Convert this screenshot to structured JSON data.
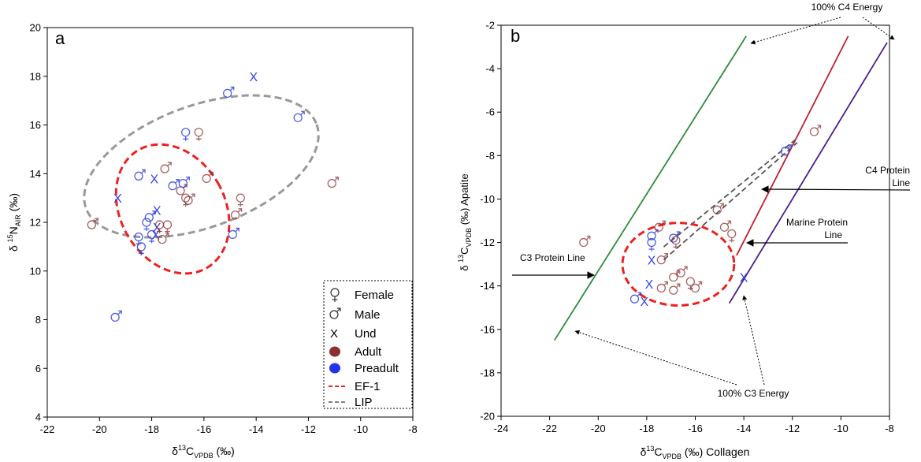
{
  "colors": {
    "adult": "#8B2E2E",
    "preadult": "#3344DD",
    "ef1": "#EE2020",
    "lip": "#999999",
    "c3line": "#2E8B3A",
    "marineline": "#C01E2E",
    "c4line": "#4B1F8C"
  },
  "chart_data": [
    {
      "type": "scatter",
      "panel_label": "a",
      "xlabel": {
        "main": "δ",
        "sup": "13",
        "sub": "C",
        "subscript": "VPDB",
        "unit": " (‰)"
      },
      "ylabel": {
        "main": "δ ",
        "sup": "15",
        "sub": "N",
        "subscript": "AIR",
        "unit": " (‰)"
      },
      "xlim": [
        -22,
        -8
      ],
      "ylim": [
        4,
        20
      ],
      "xticks": [
        -22,
        -20,
        -18,
        -16,
        -14,
        -12,
        -10,
        -8
      ],
      "yticks": [
        4,
        6,
        8,
        10,
        12,
        14,
        16,
        18,
        20
      ],
      "legend": {
        "placement": "bottom-right",
        "entries": [
          {
            "label": "Female",
            "marker": "female"
          },
          {
            "label": "Male",
            "marker": "male"
          },
          {
            "label": "Und",
            "marker": "und"
          },
          {
            "label": "Adult",
            "marker": "dot-adult"
          },
          {
            "label": "Preadult",
            "marker": "dot-preadult"
          },
          {
            "label": "EF-1",
            "marker": "dash-red"
          },
          {
            "label": "LIP",
            "marker": "dash-grey"
          }
        ]
      },
      "ellipses": [
        {
          "name": "LIP",
          "cx": -16.1,
          "cy": 14.3,
          "rx": 4.7,
          "ry": 2.5,
          "angle_deg": 20,
          "style": "lip"
        },
        {
          "name": "EF-1",
          "cx": -17.2,
          "cy": 12.55,
          "rx": 2.0,
          "ry": 2.8,
          "angle_deg": 30,
          "style": "ef1"
        }
      ],
      "points": [
        {
          "x": -20.3,
          "y": 11.9,
          "sex": "male",
          "age": "adult"
        },
        {
          "x": -19.3,
          "y": 13.0,
          "sex": "und",
          "age": "preadult"
        },
        {
          "x": -19.4,
          "y": 8.1,
          "sex": "male",
          "age": "preadult"
        },
        {
          "x": -18.5,
          "y": 13.9,
          "sex": "male",
          "age": "preadult"
        },
        {
          "x": -18.5,
          "y": 11.4,
          "sex": "female",
          "age": "preadult"
        },
        {
          "x": -18.4,
          "y": 11.0,
          "sex": "female",
          "age": "preadult"
        },
        {
          "x": -18.2,
          "y": 12.0,
          "sex": "female",
          "age": "preadult"
        },
        {
          "x": -18.1,
          "y": 12.2,
          "sex": "male",
          "age": "preadult"
        },
        {
          "x": -18.0,
          "y": 11.5,
          "sex": "female",
          "age": "preadult"
        },
        {
          "x": -17.9,
          "y": 13.8,
          "sex": "und",
          "age": "preadult"
        },
        {
          "x": -17.8,
          "y": 12.5,
          "sex": "und",
          "age": "preadult"
        },
        {
          "x": -17.8,
          "y": 11.8,
          "sex": "und",
          "age": "preadult"
        },
        {
          "x": -17.85,
          "y": 11.5,
          "sex": "und",
          "age": "preadult"
        },
        {
          "x": -17.7,
          "y": 11.9,
          "sex": "female",
          "age": "adult"
        },
        {
          "x": -17.6,
          "y": 11.3,
          "sex": "male",
          "age": "adult"
        },
        {
          "x": -17.5,
          "y": 14.2,
          "sex": "male",
          "age": "adult"
        },
        {
          "x": -17.4,
          "y": 11.9,
          "sex": "female",
          "age": "adult"
        },
        {
          "x": -17.2,
          "y": 13.5,
          "sex": "male",
          "age": "preadult"
        },
        {
          "x": -16.9,
          "y": 13.3,
          "sex": "male",
          "age": "adult"
        },
        {
          "x": -16.8,
          "y": 13.6,
          "sex": "male",
          "age": "preadult"
        },
        {
          "x": -16.7,
          "y": 13.0,
          "sex": "female",
          "age": "adult"
        },
        {
          "x": -16.6,
          "y": 12.9,
          "sex": "male",
          "age": "adult"
        },
        {
          "x": -16.7,
          "y": 15.7,
          "sex": "female",
          "age": "preadult"
        },
        {
          "x": -16.2,
          "y": 15.7,
          "sex": "female",
          "age": "adult"
        },
        {
          "x": -15.9,
          "y": 13.8,
          "sex": "male",
          "age": "adult"
        },
        {
          "x": -15.1,
          "y": 17.3,
          "sex": "male",
          "age": "preadult"
        },
        {
          "x": -14.9,
          "y": 11.5,
          "sex": "male",
          "age": "preadult"
        },
        {
          "x": -14.8,
          "y": 12.3,
          "sex": "male",
          "age": "adult"
        },
        {
          "x": -14.6,
          "y": 13.0,
          "sex": "female",
          "age": "adult"
        },
        {
          "x": -14.1,
          "y": 18.0,
          "sex": "und",
          "age": "preadult"
        },
        {
          "x": -12.4,
          "y": 16.3,
          "sex": "male",
          "age": "preadult"
        },
        {
          "x": -11.1,
          "y": 13.6,
          "sex": "male",
          "age": "adult"
        }
      ]
    },
    {
      "type": "scatter",
      "panel_label": "b",
      "xlabel": {
        "main": "δ",
        "sup": "13",
        "sub": "C",
        "subscript": "VPDB",
        "unit": " (‰) Collagen"
      },
      "ylabel": {
        "main": "δ ",
        "sup": "13",
        "sub": "C",
        "subscript": "VPDB",
        "unit": " (‰) Apatite"
      },
      "xlim": [
        -24,
        -8
      ],
      "ylim": [
        -20,
        -2
      ],
      "xticks": [
        -24,
        -22,
        -20,
        -18,
        -16,
        -14,
        -12,
        -10,
        -8
      ],
      "yticks": [
        -20,
        -18,
        -16,
        -14,
        -12,
        -10,
        -8,
        -6,
        -4,
        -2
      ],
      "lines": [
        {
          "name": "C3 Protein Line",
          "x1": -21.8,
          "y1": -16.5,
          "x2": -13.9,
          "y2": -2.5,
          "style": "c3line"
        },
        {
          "name": "Marine Protein Line",
          "x1": -14.3,
          "y1": -12.6,
          "x2": -9.7,
          "y2": -2.5,
          "style": "marineline"
        },
        {
          "name": "C4 Protein Line",
          "x1": -14.6,
          "y1": -14.8,
          "x2": -8.1,
          "y2": -2.8,
          "style": "c4line"
        }
      ],
      "lip_lines": [
        {
          "x1": -17.3,
          "y1": -12.8,
          "x2": -11.8,
          "y2": -7.4
        },
        {
          "x1": -17.3,
          "y1": -12.2,
          "x2": -11.8,
          "y2": -7.2
        }
      ],
      "ellipses": [
        {
          "name": "EF-1",
          "cx": -16.7,
          "cy": -13.0,
          "rx": 2.3,
          "ry": 1.9,
          "angle_deg": 0,
          "style": "ef1"
        }
      ],
      "annotations": {
        "c4_energy": "100% C4 Energy",
        "c3_energy": "100% C3 Energy",
        "c3_protein": "C3 Protein Line",
        "marine_protein_1": "Marine Protein",
        "marine_protein_2": "Line",
        "c4_protein_1": "C4 Protein",
        "c4_protein_2": "Line"
      },
      "points": [
        {
          "x": -20.6,
          "y": -12.0,
          "sex": "male",
          "age": "adult"
        },
        {
          "x": -18.5,
          "y": -14.6,
          "sex": "male",
          "age": "preadult"
        },
        {
          "x": -18.1,
          "y": -14.7,
          "sex": "und",
          "age": "preadult"
        },
        {
          "x": -17.9,
          "y": -13.9,
          "sex": "und",
          "age": "preadult"
        },
        {
          "x": -17.8,
          "y": -12.8,
          "sex": "und",
          "age": "preadult"
        },
        {
          "x": -17.8,
          "y": -11.7,
          "sex": "male",
          "age": "preadult"
        },
        {
          "x": -17.8,
          "y": -12.0,
          "sex": "female",
          "age": "preadult"
        },
        {
          "x": -17.5,
          "y": -11.3,
          "sex": "male",
          "age": "adult"
        },
        {
          "x": -17.4,
          "y": -14.1,
          "sex": "male",
          "age": "adult"
        },
        {
          "x": -17.4,
          "y": -12.8,
          "sex": "male",
          "age": "adult"
        },
        {
          "x": -16.9,
          "y": -14.2,
          "sex": "male",
          "age": "adult"
        },
        {
          "x": -16.9,
          "y": -13.6,
          "sex": "male",
          "age": "adult"
        },
        {
          "x": -16.9,
          "y": -11.8,
          "sex": "male",
          "age": "preadult"
        },
        {
          "x": -16.8,
          "y": -11.9,
          "sex": "female",
          "age": "adult"
        },
        {
          "x": -16.6,
          "y": -13.4,
          "sex": "male",
          "age": "adult"
        },
        {
          "x": -16.2,
          "y": -13.8,
          "sex": "female",
          "age": "adult"
        },
        {
          "x": -16.0,
          "y": -14.1,
          "sex": "male",
          "age": "adult"
        },
        {
          "x": -15.1,
          "y": -10.5,
          "sex": "male",
          "age": "adult"
        },
        {
          "x": -14.8,
          "y": -11.3,
          "sex": "male",
          "age": "adult"
        },
        {
          "x": -14.5,
          "y": -11.6,
          "sex": "female",
          "age": "adult"
        },
        {
          "x": -14.0,
          "y": -13.6,
          "sex": "und",
          "age": "preadult"
        },
        {
          "x": -12.3,
          "y": -7.8,
          "sex": "male",
          "age": "preadult"
        },
        {
          "x": -11.1,
          "y": -6.9,
          "sex": "male",
          "age": "adult"
        }
      ]
    }
  ]
}
